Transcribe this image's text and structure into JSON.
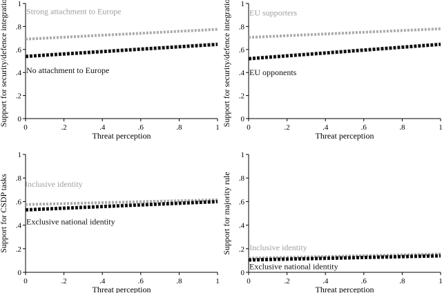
{
  "chart_data": [
    {
      "type": "line",
      "xlabel": "Threat perception",
      "ylabel": "Support for security/defence integration",
      "xlim": [
        0,
        1
      ],
      "ylim": [
        0,
        1
      ],
      "xticks": [
        "0",
        ".2",
        ".4",
        ".6",
        ".8",
        "1"
      ],
      "yticks": [
        "0",
        ".2",
        ".4",
        ".6",
        ".8",
        "1"
      ],
      "grid": false,
      "series": [
        {
          "name": "Strong attachment to Europe",
          "x": [
            0,
            1
          ],
          "y": [
            0.69,
            0.775
          ],
          "color": "#aaaaaa",
          "label_y": 0.93,
          "label_dx": 0
        },
        {
          "name": "No attachment to Europe",
          "x": [
            0,
            1
          ],
          "y": [
            0.54,
            0.645
          ],
          "color": "#111111",
          "label_y": 0.42,
          "label_dx": 0
        }
      ]
    },
    {
      "type": "line",
      "xlabel": "Threat perception",
      "ylabel": "Support for security/defence integration",
      "xlim": [
        0,
        1
      ],
      "ylim": [
        0,
        1
      ],
      "xticks": [
        "0",
        ".2",
        ".4",
        ".6",
        ".8",
        "1"
      ],
      "yticks": [
        "0",
        ".2",
        ".4",
        ".6",
        ".8",
        "1"
      ],
      "grid": false,
      "series": [
        {
          "name": "EU supporters",
          "x": [
            0,
            1
          ],
          "y": [
            0.705,
            0.78
          ],
          "color": "#aaaaaa",
          "label_y": 0.92,
          "label_dx": 0
        },
        {
          "name": "EU opponents",
          "x": [
            0,
            1
          ],
          "y": [
            0.52,
            0.645
          ],
          "color": "#111111",
          "label_y": 0.4,
          "label_dx": 0
        }
      ]
    },
    {
      "type": "line",
      "xlabel": "Threat perception",
      "ylabel": "Support for CSDP tasks",
      "xlim": [
        0,
        1
      ],
      "ylim": [
        0,
        1
      ],
      "xticks": [
        "0",
        ".2",
        ".4",
        ".6",
        ".8",
        "1"
      ],
      "yticks": [
        "0",
        ".2",
        ".4",
        ".6",
        ".8",
        "1"
      ],
      "grid": false,
      "series": [
        {
          "name": "Inclusive identity",
          "x": [
            0,
            1
          ],
          "y": [
            0.575,
            0.615
          ],
          "color": "#aaaaaa",
          "label_y": 0.75,
          "label_dx": -2
        },
        {
          "name": "Exclusive national identity",
          "x": [
            0,
            1
          ],
          "y": [
            0.53,
            0.6
          ],
          "color": "#111111",
          "label_y": 0.43,
          "label_dx": 0
        }
      ]
    },
    {
      "type": "line",
      "xlabel": "Threat perception",
      "ylabel": "Support for majority rule",
      "xlim": [
        0,
        1
      ],
      "ylim": [
        0,
        1
      ],
      "xticks": [
        "0",
        ".2",
        ".4",
        ".6",
        ".8",
        "1"
      ],
      "yticks": [
        "0",
        ".2",
        ".4",
        ".6",
        ".8",
        "1"
      ],
      "grid": false,
      "series": [
        {
          "name": "Inclusive identity",
          "x": [
            0,
            1
          ],
          "y": [
            0.12,
            0.155
          ],
          "color": "#aaaaaa",
          "label_y": 0.21,
          "label_dx": 0
        },
        {
          "name": "Exclusive national identity",
          "x": [
            0,
            1
          ],
          "y": [
            0.105,
            0.14
          ],
          "color": "#111111",
          "label_y": 0.05,
          "label_dx": 0
        }
      ]
    }
  ]
}
